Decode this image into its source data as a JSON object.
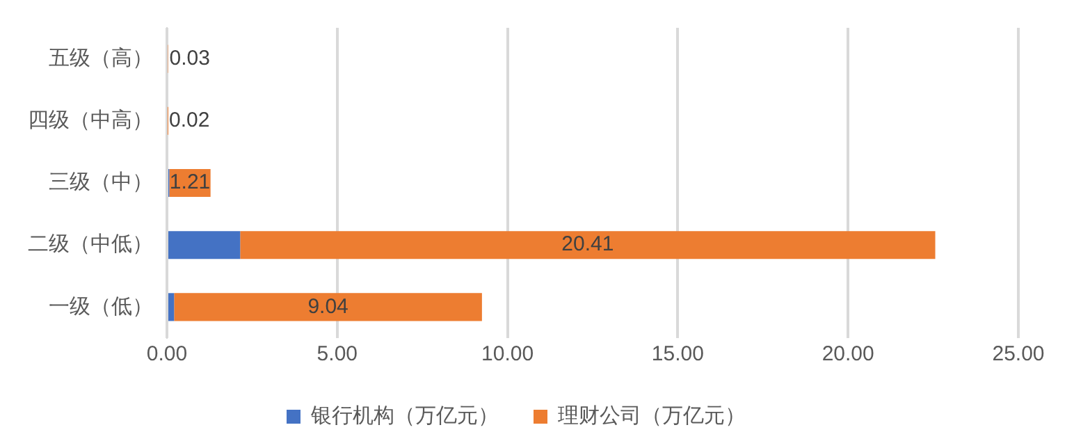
{
  "chart_data": {
    "type": "bar",
    "orientation": "horizontal",
    "stacked": true,
    "categories": [
      "五级（高）",
      "四级（中高）",
      "三级（中）",
      "二级（中低）",
      "一级（低）"
    ],
    "series": [
      {
        "name": "银行机构（万亿元）",
        "color": "#4472c4",
        "values": [
          0,
          0,
          0.07,
          2.15,
          0.21
        ]
      },
      {
        "name": "理财公司（万亿元）",
        "color": "#ed7d31",
        "values": [
          0.03,
          0.02,
          1.21,
          20.41,
          9.04
        ],
        "value_labels": [
          "0.03",
          "0.02",
          "1.21",
          "20.41",
          "9.04"
        ]
      }
    ],
    "xlim": [
      0,
      25
    ],
    "xticks": [
      {
        "value": 0,
        "label": "0.00"
      },
      {
        "value": 5,
        "label": "5.00"
      },
      {
        "value": 10,
        "label": "10.00"
      },
      {
        "value": 15,
        "label": "15.00"
      },
      {
        "value": 20,
        "label": "20.00"
      },
      {
        "value": 25,
        "label": "25.00"
      }
    ],
    "grid": "x",
    "legend": "bottom"
  }
}
